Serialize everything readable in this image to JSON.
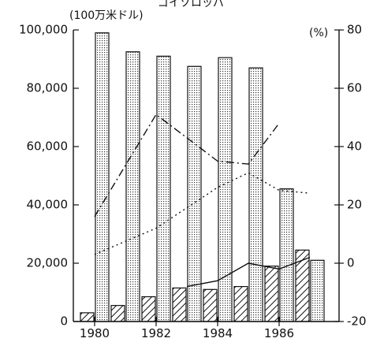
{
  "chart_data": {
    "type": "bar",
    "title": "ゴイゾロッパ",
    "left_axis": {
      "unit_label": "(100万米ドル)",
      "ylim": [
        0,
        100000
      ],
      "ticks": [
        "0",
        "20,000",
        "40,000",
        "60,000",
        "80,000",
        "100,000"
      ]
    },
    "right_axis": {
      "unit_label": "(%)",
      "ylim": [
        -20,
        80
      ],
      "ticks": [
        "-20",
        "0",
        "20",
        "40",
        "60",
        "80"
      ]
    },
    "x_tick_labels": [
      "1980",
      "1982",
      "1984",
      "1986"
    ],
    "categories": [
      "1980",
      "1981",
      "1982",
      "1983",
      "1984",
      "1985",
      "1986",
      "1987"
    ],
    "series": [
      {
        "type": "bar",
        "axis": "left",
        "pattern": "dotted",
        "values": [
          99000,
          92500,
          91000,
          87500,
          90500,
          87000,
          45500,
          21000
        ]
      },
      {
        "type": "bar",
        "axis": "left",
        "pattern": "hatched",
        "values": [
          3000,
          5500,
          8500,
          11500,
          11000,
          12000,
          19000,
          24500
        ]
      },
      {
        "type": "line",
        "axis": "right",
        "style": "dash-dot",
        "points": [
          [
            1980,
            16
          ],
          [
            1982,
            51
          ],
          [
            1984,
            35
          ],
          [
            1985,
            34
          ],
          [
            1986,
            48
          ]
        ]
      },
      {
        "type": "line",
        "axis": "right",
        "style": "dotted",
        "points": [
          [
            1980,
            3
          ],
          [
            1982,
            12
          ],
          [
            1983,
            19
          ],
          [
            1984,
            26
          ],
          [
            1985,
            31
          ],
          [
            1986,
            25
          ],
          [
            1987,
            24
          ]
        ]
      },
      {
        "type": "line",
        "axis": "right",
        "style": "solid",
        "points": [
          [
            1983,
            -8
          ],
          [
            1984,
            -6
          ],
          [
            1985,
            0
          ],
          [
            1986,
            -2
          ],
          [
            1987,
            2
          ]
        ]
      }
    ]
  }
}
